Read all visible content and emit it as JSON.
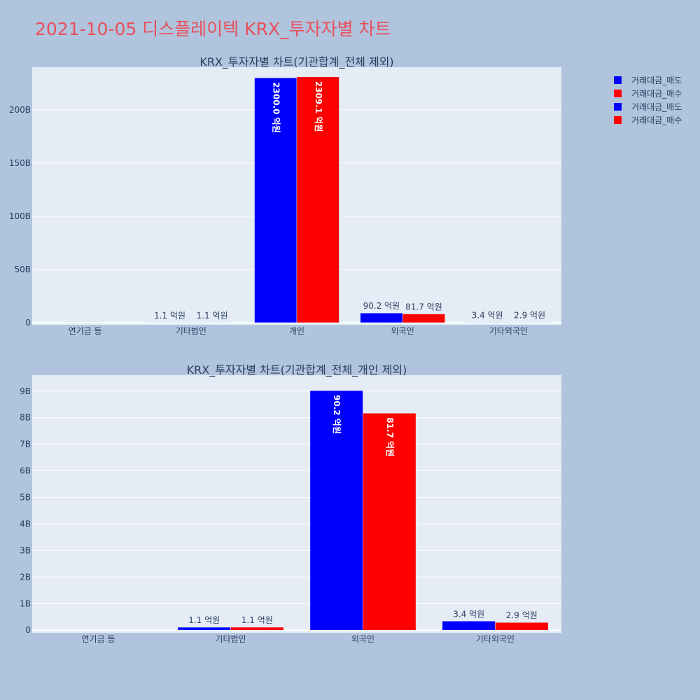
{
  "page_title": "2021-10-05 디스플레이텍 KRX_투자자별 차트",
  "colors": {
    "sell": "#0000ff",
    "buy": "#ff0000",
    "plot_bg": "#e5ecf6",
    "paper_bg": "#b0c4de",
    "grid": "#ffffff"
  },
  "legend": [
    {
      "label": "거래대금_매도",
      "color": "#0000ff"
    },
    {
      "label": "거래대금_매수",
      "color": "#ff0000"
    },
    {
      "label": "거래대금_매도",
      "color": "#0000ff"
    },
    {
      "label": "거래대금_매수",
      "color": "#ff0000"
    }
  ],
  "chart_data": [
    {
      "type": "bar",
      "title": "KRX_투자자별 차트(기관합계_전체 제외)",
      "categories": [
        "연기금 등",
        "기타법인",
        "개인",
        "외국인",
        "기타외국인"
      ],
      "series": [
        {
          "name": "거래대금_매도",
          "values": [
            0,
            0.11,
            230.0,
            9.02,
            0.34
          ],
          "labels": [
            "",
            "1.1 억원",
            "2300.0 억원",
            "90.2 억원",
            "3.4 억원"
          ]
        },
        {
          "name": "거래대금_매수",
          "values": [
            0,
            0.11,
            230.91,
            8.17,
            0.29
          ],
          "labels": [
            "",
            "1.1 억원",
            "2309.1 억원",
            "81.7 억원",
            "2.9 억원"
          ]
        }
      ],
      "yticks": [
        0,
        50,
        100,
        150,
        200
      ],
      "ytick_labels": [
        "0",
        "50B",
        "100B",
        "150B",
        "200B"
      ],
      "ylim": [
        -2,
        240
      ],
      "unit": "B",
      "legend": "top-right"
    },
    {
      "type": "bar",
      "title": "KRX_투자자별 차트(기관합계_전체_개인 제외)",
      "categories": [
        "연기금 등",
        "기타법인",
        "외국인",
        "기타외국인"
      ],
      "series": [
        {
          "name": "거래대금_매도",
          "values": [
            0,
            0.11,
            9.02,
            0.34
          ],
          "labels": [
            "",
            "1.1 억원",
            "90.2 억원",
            "3.4 억원"
          ]
        },
        {
          "name": "거래대금_매수",
          "values": [
            0,
            0.11,
            8.17,
            0.29
          ],
          "labels": [
            "",
            "1.1 억원",
            "81.7 억원",
            "2.9 억원"
          ]
        }
      ],
      "yticks": [
        0,
        1,
        2,
        3,
        4,
        5,
        6,
        7,
        8,
        9
      ],
      "ytick_labels": [
        "0",
        "1B",
        "2B",
        "3B",
        "4B",
        "5B",
        "6B",
        "7B",
        "8B",
        "9B"
      ],
      "ylim": [
        -0.1,
        9.6
      ],
      "unit": "B"
    }
  ]
}
